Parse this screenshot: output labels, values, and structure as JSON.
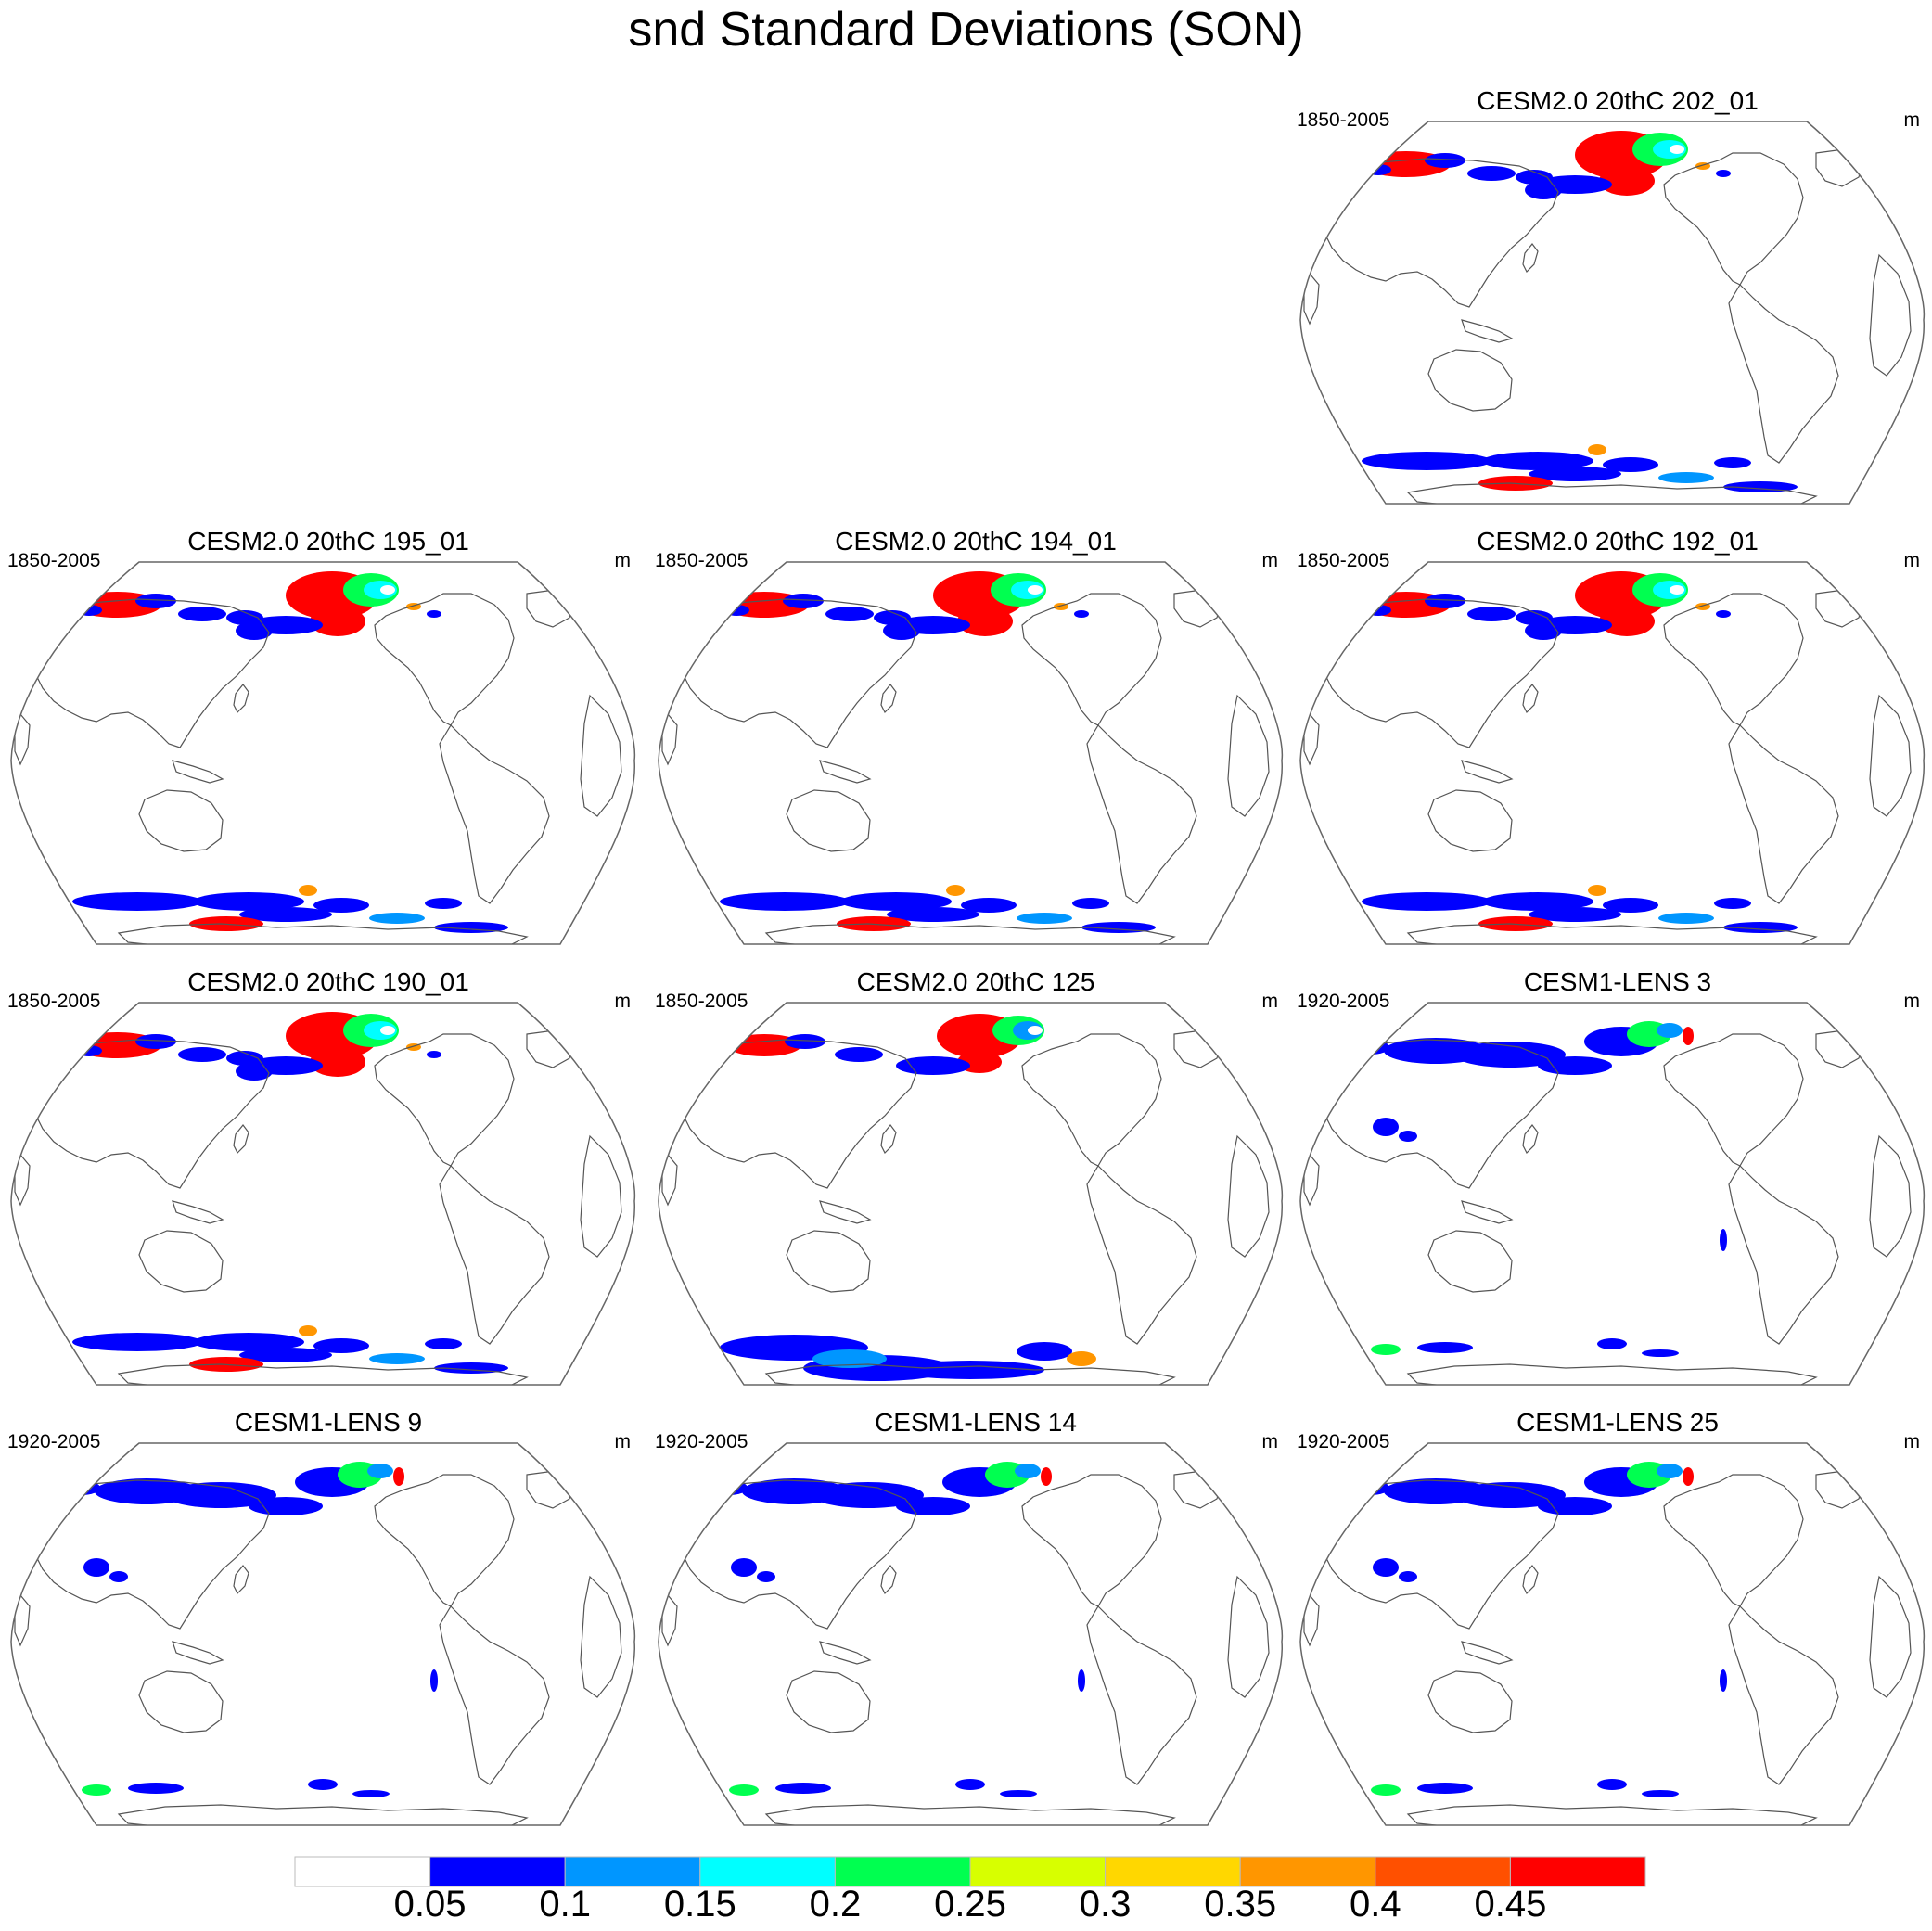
{
  "title": "snd Standard Deviations (SON)",
  "units": "m",
  "panels": [
    {
      "title": "CESM2.0 20thC 202_01",
      "period": "1850-2005",
      "unit": "m",
      "snow_intensity": "high"
    },
    {
      "title": "CESM2.0 20thC 195_01",
      "period": "1850-2005",
      "unit": "m",
      "snow_intensity": "high"
    },
    {
      "title": "CESM2.0 20thC 194_01",
      "period": "1850-2005",
      "unit": "m",
      "snow_intensity": "high"
    },
    {
      "title": "CESM2.0 20thC 192_01",
      "period": "1850-2005",
      "unit": "m",
      "snow_intensity": "high"
    },
    {
      "title": "CESM2.0 20thC 190_01",
      "period": "1850-2005",
      "unit": "m",
      "snow_intensity": "high"
    },
    {
      "title": "CESM2.0 20thC 125",
      "period": "1850-2005",
      "unit": "m",
      "snow_intensity": "medium"
    },
    {
      "title": "CESM1-LENS 3",
      "period": "1920-2005",
      "unit": "m",
      "snow_intensity": "low"
    },
    {
      "title": "CESM1-LENS 9",
      "period": "1920-2005",
      "unit": "m",
      "snow_intensity": "low"
    },
    {
      "title": "CESM1-LENS 14",
      "period": "1920-2005",
      "unit": "m",
      "snow_intensity": "low"
    },
    {
      "title": "CESM1-LENS 25",
      "period": "1920-2005",
      "unit": "m",
      "snow_intensity": "low"
    }
  ],
  "colorbar": {
    "labels": [
      "0.05",
      "0.1",
      "0.15",
      "0.2",
      "0.25",
      "0.3",
      "0.35",
      "0.4",
      "0.45"
    ],
    "colors": [
      "#ffffff",
      "#0000ff",
      "#0096ff",
      "#00ffff",
      "#00ff50",
      "#d7ff00",
      "#ffd700",
      "#ff9600",
      "#ff5000",
      "#ff0000"
    ]
  }
}
